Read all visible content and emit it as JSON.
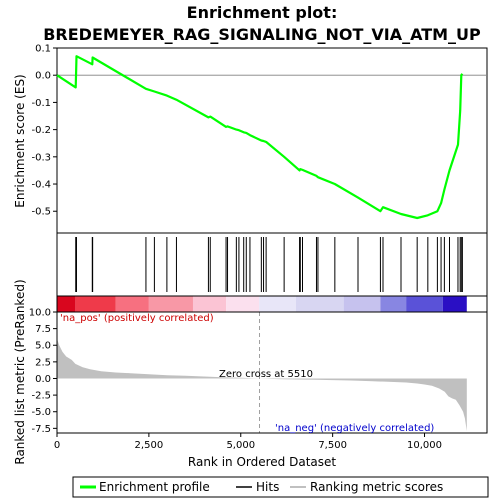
{
  "chart_data": {
    "type": "line",
    "title_line1": "Enrichment plot:",
    "title_line2": "BREDEMEYER_RAG_SIGNALING_NOT_VIA_ATM_UP",
    "xlabel": "Rank in Ordered Dataset",
    "xlim": [
      0,
      11700
    ],
    "xticks": [
      0,
      2500,
      5000,
      7500,
      10000
    ],
    "xtick_labels": [
      "0",
      "2,500",
      "5,000",
      "7,500",
      "10,000"
    ],
    "es_panel": {
      "ylabel": "Enrichment score (ES)",
      "ylim": [
        -0.58,
        0.1
      ],
      "yticks": [
        0.1,
        0.0,
        -0.1,
        -0.2,
        -0.3,
        -0.4,
        -0.5
      ],
      "ytick_labels": [
        "0.1",
        "0.0",
        "-0.1",
        "-0.2",
        "-0.3",
        "-0.4",
        "-0.5"
      ],
      "zero_line": true
    },
    "rank_panel": {
      "ylabel": "Ranked list metric (PreRanked)",
      "ylim": [
        -8.2,
        10.0
      ],
      "yticks": [
        10.0,
        7.5,
        5.0,
        2.5,
        0.0,
        -2.5,
        -5.0,
        -7.5
      ],
      "ytick_labels": [
        "10.0",
        "7.5",
        "5.0",
        "2.5",
        "0.0",
        "-2.5",
        "-5.0",
        "-7.5"
      ],
      "zero_cross_label": "Zero cross at 5510",
      "zero_cross": 5510,
      "pos_label": "'na_pos' (positively correlated)",
      "neg_label": "'na_neg' (negatively correlated)",
      "metric_profile": [
        [
          0,
          6.0
        ],
        [
          60,
          5.0
        ],
        [
          150,
          4.0
        ],
        [
          250,
          3.3
        ],
        [
          400,
          2.8
        ],
        [
          500,
          2.2
        ],
        [
          700,
          1.7
        ],
        [
          900,
          1.4
        ],
        [
          1200,
          1.1
        ],
        [
          1600,
          0.9
        ],
        [
          2000,
          0.8
        ],
        [
          2500,
          0.65
        ],
        [
          3000,
          0.5
        ],
        [
          3500,
          0.4
        ],
        [
          4000,
          0.3
        ],
        [
          4500,
          0.2
        ],
        [
          5000,
          0.1
        ],
        [
          5510,
          0.0
        ],
        [
          6000,
          -0.1
        ],
        [
          6500,
          -0.15
        ],
        [
          7000,
          -0.2
        ],
        [
          7500,
          -0.25
        ],
        [
          8000,
          -0.3
        ],
        [
          8500,
          -0.4
        ],
        [
          9000,
          -0.5
        ],
        [
          9500,
          -0.6
        ],
        [
          9800,
          -0.75
        ],
        [
          10000,
          -0.9
        ],
        [
          10200,
          -1.1
        ],
        [
          10400,
          -1.5
        ],
        [
          10550,
          -2.0
        ],
        [
          10650,
          -2.7
        ],
        [
          10750,
          -3.0
        ],
        [
          10850,
          -3.2
        ],
        [
          10950,
          -4.0
        ],
        [
          11050,
          -5.0
        ],
        [
          11100,
          -6.0
        ],
        [
          11150,
          -7.9
        ]
      ]
    },
    "series": [
      {
        "name": "Enrichment profile",
        "color": "#00ff00",
        "x": [
          0,
          510,
          520,
          530,
          960,
          970,
          2420,
          2650,
          2990,
          3250,
          4120,
          4170,
          4600,
          4640,
          4880,
          4950,
          5080,
          5150,
          5250,
          5560,
          5620,
          5690,
          6180,
          6600,
          6620,
          6680,
          7060,
          7100,
          7560,
          8190,
          8800,
          8870,
          9360,
          9800,
          10090,
          10350,
          10450,
          10540,
          10680,
          10910,
          10970,
          11000,
          11030
        ],
        "y": [
          0.0,
          -0.045,
          0.01,
          0.07,
          0.04,
          0.065,
          -0.05,
          -0.06,
          -0.075,
          -0.09,
          -0.155,
          -0.152,
          -0.19,
          -0.188,
          -0.2,
          -0.202,
          -0.21,
          -0.212,
          -0.22,
          -0.24,
          -0.242,
          -0.245,
          -0.3,
          -0.35,
          -0.345,
          -0.348,
          -0.37,
          -0.375,
          -0.4,
          -0.45,
          -0.5,
          -0.485,
          -0.51,
          -0.525,
          -0.515,
          -0.5,
          -0.47,
          -0.42,
          -0.35,
          -0.255,
          -0.13,
          0.0,
          0.005
        ]
      }
    ],
    "hits": [
      510,
      520,
      530,
      960,
      970,
      2420,
      2650,
      2990,
      3250,
      4120,
      4170,
      4600,
      4640,
      4880,
      4950,
      5080,
      5150,
      5250,
      5560,
      5620,
      5690,
      6180,
      6600,
      6620,
      6680,
      7060,
      7100,
      7560,
      8190,
      8800,
      8870,
      9360,
      9800,
      10090,
      10350,
      10450,
      10540,
      10680,
      10910,
      10970,
      11000,
      11030
    ],
    "heatmap_segments": [
      {
        "from": 0,
        "to": 500,
        "color": "#d9061e"
      },
      {
        "from": 500,
        "to": 1600,
        "color": "#ef3a4a"
      },
      {
        "from": 1600,
        "to": 2500,
        "color": "#f77080"
      },
      {
        "from": 2500,
        "to": 3700,
        "color": "#f898a6"
      },
      {
        "from": 3700,
        "to": 4600,
        "color": "#fbc4d4"
      },
      {
        "from": 4600,
        "to": 5500,
        "color": "#fbe0ee"
      },
      {
        "from": 5500,
        "to": 6500,
        "color": "#e8e6f8"
      },
      {
        "from": 6500,
        "to": 7800,
        "color": "#d8d6f2"
      },
      {
        "from": 7800,
        "to": 8800,
        "color": "#c6c2ee"
      },
      {
        "from": 8800,
        "to": 9500,
        "color": "#8886e2"
      },
      {
        "from": 9500,
        "to": 10500,
        "color": "#5a52d8"
      },
      {
        "from": 10500,
        "to": 11150,
        "color": "#2a0fc4"
      }
    ],
    "legend": [
      {
        "label": "Enrichment profile",
        "color": "#00ff00",
        "kind": "line"
      },
      {
        "label": "Hits",
        "color": "#000000",
        "kind": "line"
      },
      {
        "label": "Ranking metric scores",
        "color": "#c0c0c0",
        "kind": "line"
      }
    ],
    "colors": {
      "pos_label": "#cc0000",
      "neg_label": "#0000cc",
      "metric_fill": "#c0c0c0",
      "zero_cross_line": "#a0a0a0"
    }
  }
}
